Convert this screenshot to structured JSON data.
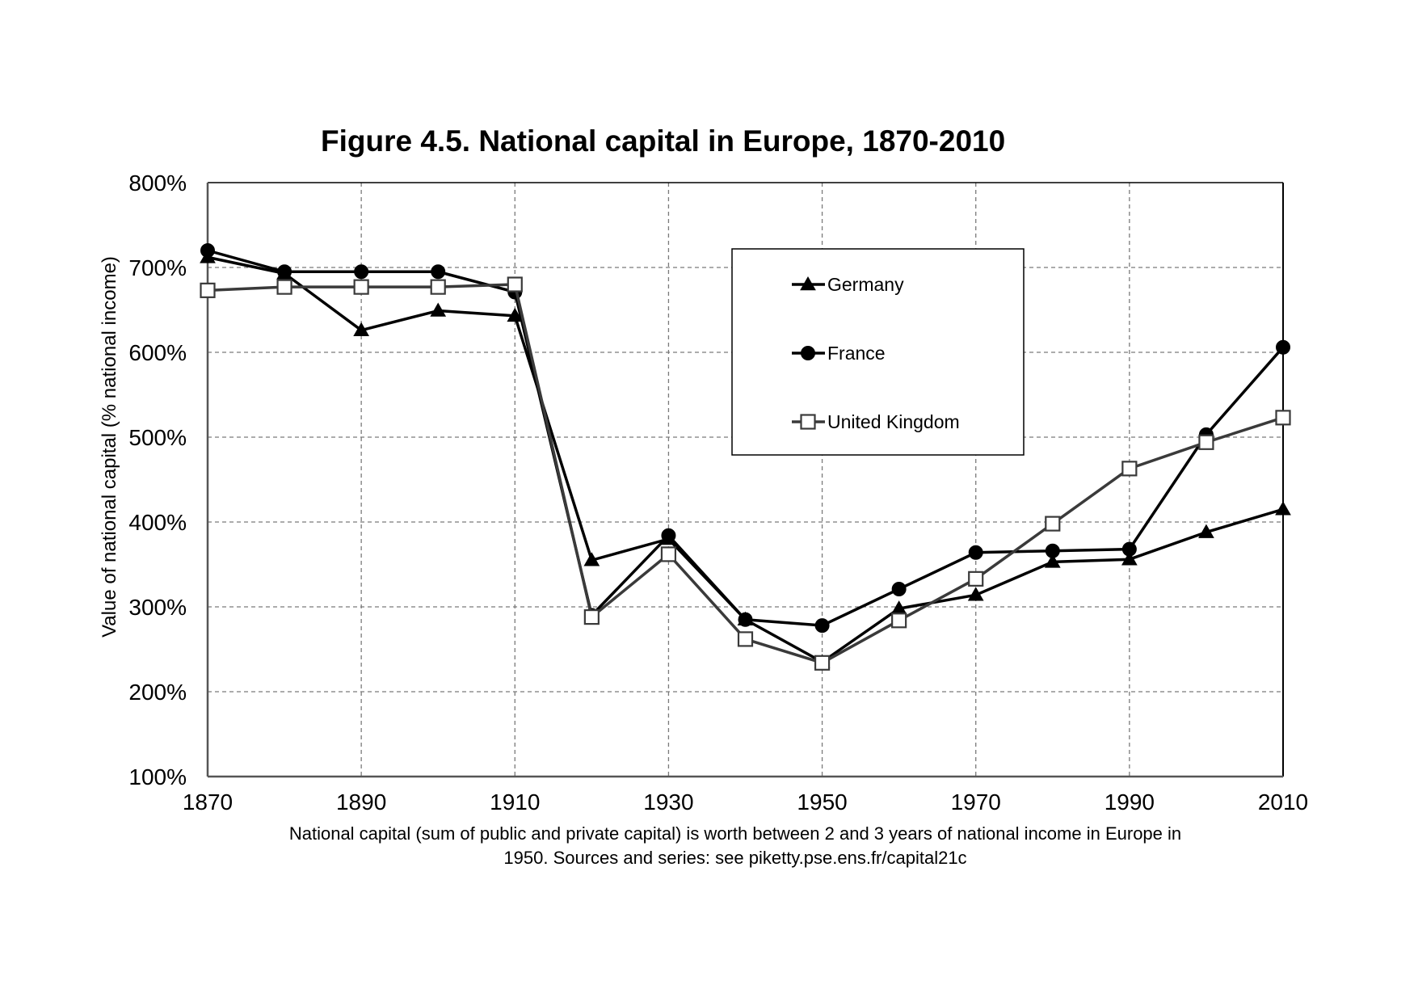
{
  "chart_data": {
    "type": "line",
    "title": "Figure 4.5. National capital in Europe, 1870-2010",
    "ylabel": "Value of national capital (% national income)",
    "xlabel": "",
    "caption": [
      "National capital (sum of public and private capital) is worth between 2 and 3 years of national income in Europe in",
      "1950. Sources and series: see piketty.pse.ens.fr/capital21c"
    ],
    "x": [
      1870,
      1880,
      1890,
      1900,
      1910,
      1920,
      1930,
      1940,
      1950,
      1960,
      1970,
      1980,
      1990,
      2000,
      2010
    ],
    "xlim": [
      1870,
      2010
    ],
    "ylim": [
      100,
      800
    ],
    "x_ticks": [
      "1870",
      "1890",
      "1910",
      "1930",
      "1950",
      "1970",
      "1990",
      "2010"
    ],
    "y_ticks": [
      "100%",
      "200%",
      "300%",
      "400%",
      "500%",
      "600%",
      "700%",
      "800%"
    ],
    "grid": true,
    "legend_position": "top-right",
    "series": [
      {
        "name": "Germany",
        "marker": "triangle",
        "color": "#000000",
        "values": [
          712,
          693,
          626,
          649,
          643,
          355,
          380,
          285,
          235,
          298,
          314,
          353,
          356,
          388,
          415
        ]
      },
      {
        "name": "France",
        "marker": "circle",
        "color": "#000000",
        "values": [
          720,
          695,
          695,
          695,
          671,
          290,
          384,
          285,
          278,
          321,
          364,
          366,
          368,
          503,
          606
        ]
      },
      {
        "name": "United Kingdom",
        "marker": "square",
        "color": "#3a3a3a",
        "values": [
          673,
          677,
          677,
          677,
          680,
          288,
          362,
          262,
          234,
          284,
          333,
          398,
          463,
          494,
          523
        ]
      }
    ]
  }
}
